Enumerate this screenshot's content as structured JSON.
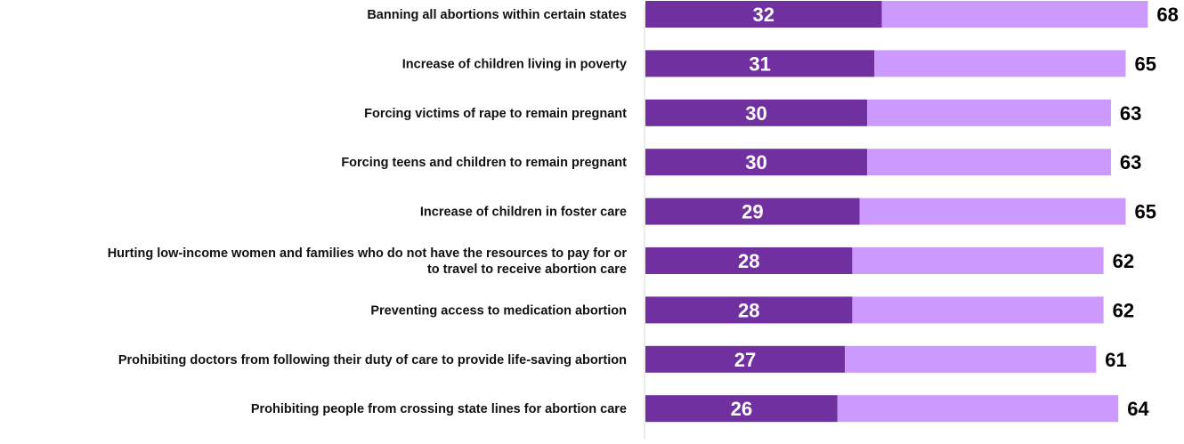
{
  "chart_data": {
    "type": "bar",
    "orientation": "horizontal",
    "stacked": true,
    "title": "",
    "xlabel": "",
    "ylabel": "",
    "xlim": [
      0,
      70
    ],
    "grid": false,
    "legend": "none",
    "categories": [
      [
        "Banning all abortions within certain states"
      ],
      [
        "Increase of children living in poverty"
      ],
      [
        "Forcing victims of rape to remain pregnant"
      ],
      [
        "Forcing teens and children to remain pregnant"
      ],
      [
        "Increase of children in foster care"
      ],
      [
        "Hurting low-income women and families who do not have the resources to pay for or",
        "to travel to receive abortion care"
      ],
      [
        "Preventing access to medication abortion"
      ],
      [
        "Prohibiting doctors from following their duty of care to provide life-saving abortion"
      ],
      [
        "Prohibiting people from crossing state lines for abortion care"
      ]
    ],
    "series": [
      {
        "color": "#7030a0",
        "values": [
          32,
          31,
          30,
          30,
          29,
          28,
          28,
          27,
          26
        ]
      },
      {
        "color": "#cc99ff",
        "values": [
          36,
          34,
          33,
          33,
          36,
          34,
          34,
          34,
          38
        ]
      }
    ],
    "totals": [
      68,
      65,
      63,
      63,
      65,
      62,
      62,
      61,
      64
    ]
  }
}
